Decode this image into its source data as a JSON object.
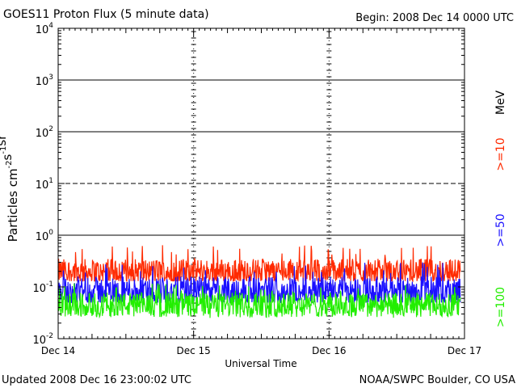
{
  "header": {
    "title": "GOES11 Proton Flux (5 minute data)",
    "begin": "Begin: 2008 Dec 14 0000 UTC"
  },
  "footer": {
    "updated": "Updated 2008 Dec 16 23:00:02 UTC",
    "credit": "NOAA/SWPC Boulder, CO USA"
  },
  "chart_data": {
    "type": "line",
    "title": "GOES11 Proton Flux (5 minute data)",
    "xlabel": "Universal Time",
    "ylabel": "Particles cm-2s-1sr-1",
    "yscale": "log",
    "ylim": [
      0.01,
      10000
    ],
    "xlim_days": [
      0,
      3
    ],
    "x_ticks": [
      "Dec 14",
      "Dec 15",
      "Dec 16",
      "Dec 17"
    ],
    "y_ticks": [
      {
        "base": "10",
        "exp": "-2"
      },
      {
        "base": "10",
        "exp": "-1"
      },
      {
        "base": "10",
        "exp": "0"
      },
      {
        "base": "10",
        "exp": "1"
      },
      {
        "base": "10",
        "exp": "2"
      },
      {
        "base": "10",
        "exp": "3"
      },
      {
        "base": "10",
        "exp": "4"
      }
    ],
    "threshold_lines": [
      1,
      10,
      100,
      1000
    ],
    "legend": {
      "unit": "MeV",
      "position": "right, vertical"
    },
    "series": [
      {
        "name": ">=10",
        "color": "#ff2a00",
        "typical": 0.2,
        "min": 0.13,
        "max": 0.65,
        "end_day": 2.97
      },
      {
        "name": ">=50",
        "color": "#1a10ff",
        "typical": 0.085,
        "min": 0.05,
        "max": 0.3,
        "end_day": 2.97
      },
      {
        "name": ">=100",
        "color": "#22ee00",
        "typical": 0.045,
        "min": 0.025,
        "max": 0.12,
        "end_day": 2.97
      }
    ],
    "grid": "dashed vertical lines at day boundaries"
  }
}
